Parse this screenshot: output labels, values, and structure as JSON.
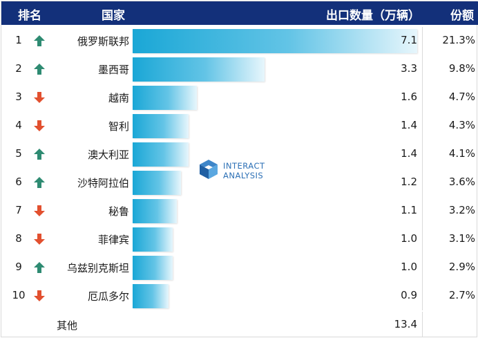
{
  "header": {
    "rank": "排名",
    "country": "国家",
    "exports": "出口数量（万辆）",
    "share": "份额"
  },
  "colors": {
    "up": "#2e8b72",
    "down": "#e2502f",
    "header_bg": "#13307a",
    "bar": "#1aa7d6"
  },
  "chart_data": {
    "type": "bar",
    "title": "",
    "xlabel": "",
    "ylabel": "出口数量（万辆）",
    "categories": [
      "俄罗斯联邦",
      "墨西哥",
      "越南",
      "智利",
      "澳大利亚",
      "沙特阿拉伯",
      "秘鲁",
      "菲律宾",
      "乌兹别克斯坦",
      "厄瓜多尔"
    ],
    "values": [
      7.1,
      3.3,
      1.6,
      1.4,
      1.4,
      1.2,
      1.1,
      1.0,
      1.0,
      0.9
    ],
    "value_labels": [
      "7.1",
      "3.3",
      "1.6",
      "1.4",
      "1.4",
      "1.2",
      "1.1",
      "1.0",
      "1.0",
      "0.9"
    ],
    "ranks": [
      "1",
      "2",
      "3",
      "4",
      "5",
      "6",
      "7",
      "8",
      "9",
      "10"
    ],
    "trend": [
      "up",
      "up",
      "down",
      "down",
      "up",
      "up",
      "down",
      "down",
      "up",
      "down"
    ],
    "shares": [
      "21.3%",
      "9.8%",
      "4.7%",
      "4.3%",
      "4.1%",
      "3.6%",
      "3.2%",
      "3.1%",
      "2.9%",
      "2.7%"
    ],
    "xlim": [
      0,
      7.1
    ],
    "other": {
      "label": "其他",
      "value": "13.4"
    }
  },
  "logo": {
    "line1": "INTERACT",
    "line2": "ANALYSIS",
    "icon": "interact-analysis-logo-icon"
  }
}
